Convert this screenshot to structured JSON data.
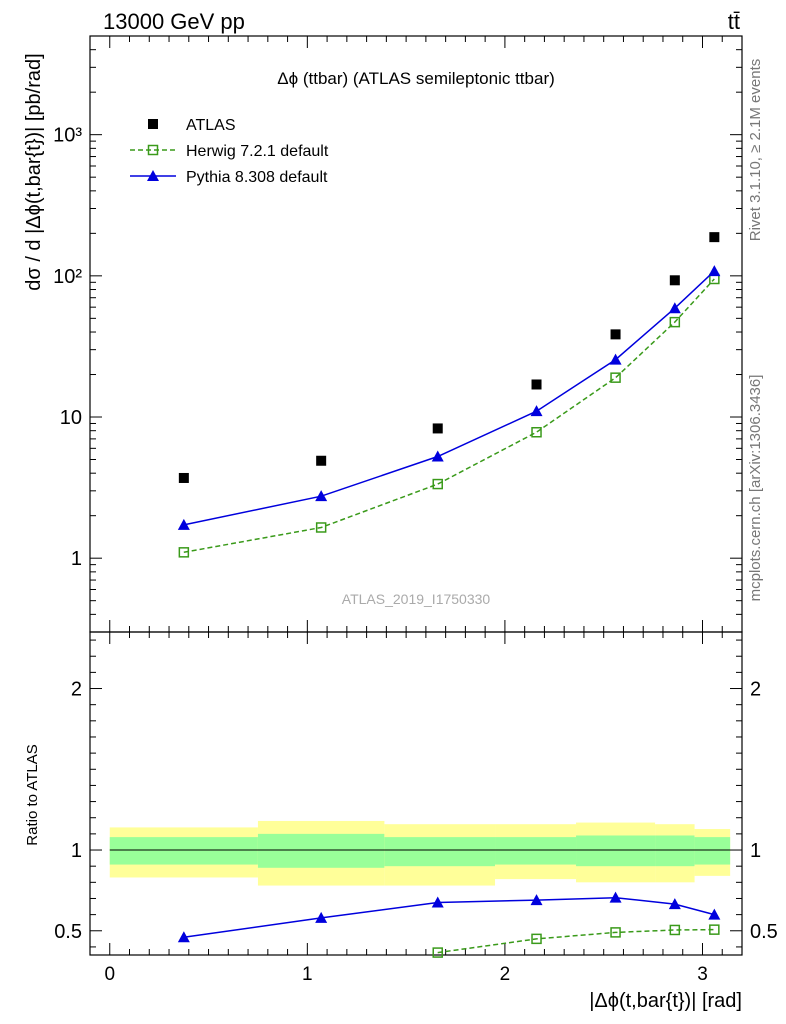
{
  "header": {
    "left": "13000 GeV pp",
    "right": "tt̄"
  },
  "side": {
    "rivet": "Rivet 3.1.10, ≥ 2.1M events",
    "mcplots": "mcplots.cern.ch [arXiv:1306.3436]"
  },
  "chart_data": [
    {
      "type": "scatter",
      "title": "Δϕ (ttbar) (ATLAS semileptonic ttbar)",
      "watermark": "ATLAS_2019_I1750330",
      "xlabel": "|Δϕ(t,bar{t})| [rad]",
      "ylabel": "dσ / d |Δϕ(t,bar{t})| [pb/rad]",
      "yscale": "log",
      "xlim": [
        -0.1,
        3.2
      ],
      "ylim": [
        0.3,
        5000
      ],
      "yticks": [
        {
          "v": 1,
          "label": "1"
        },
        {
          "v": 10,
          "label": "10"
        },
        {
          "v": 100,
          "label": "10²"
        },
        {
          "v": 1000,
          "label": "10³"
        }
      ],
      "xticks": [
        0,
        1,
        2,
        3
      ],
      "legend_position": "top-left",
      "series": [
        {
          "name": "ATLAS",
          "style": "data",
          "color": "#000000",
          "x": [
            0.375,
            1.07,
            1.66,
            2.16,
            2.56,
            2.86,
            3.06
          ],
          "y": [
            3.7,
            4.9,
            8.3,
            17.0,
            38.5,
            93.0,
            188.0
          ]
        },
        {
          "name": "Herwig 7.2.1 default",
          "style": "dashed-open-square",
          "color": "#3a9a1a",
          "x": [
            0.375,
            1.07,
            1.66,
            2.16,
            2.56,
            2.86,
            3.06
          ],
          "y": [
            1.1,
            1.65,
            3.35,
            7.8,
            19.0,
            47.0,
            95.0
          ]
        },
        {
          "name": "Pythia 8.308 default",
          "style": "solid-triangle",
          "color": "#0000dd",
          "x": [
            0.375,
            1.07,
            1.66,
            2.16,
            2.56,
            2.86,
            3.06
          ],
          "y": [
            1.72,
            2.75,
            5.25,
            11.0,
            25.5,
            59.0,
            108.0
          ]
        }
      ]
    },
    {
      "type": "line",
      "ylabel": "Ratio to ATLAS",
      "xlim": [
        -0.1,
        3.2
      ],
      "ylim": [
        0.35,
        2.35
      ],
      "yticks": [
        {
          "v": 0.5,
          "label": "0.5"
        },
        {
          "v": 1,
          "label": "1"
        },
        {
          "v": 2,
          "label": "2"
        }
      ],
      "xticks": [
        0,
        1,
        2,
        3
      ],
      "reference_line": 1,
      "bands": {
        "edges": [
          0,
          0.75,
          1.39,
          1.95,
          2.36,
          2.76,
          2.96,
          3.14
        ],
        "yellow": [
          [
            0.83,
            1.14
          ],
          [
            0.78,
            1.18
          ],
          [
            0.78,
            1.16
          ],
          [
            0.82,
            1.16
          ],
          [
            0.8,
            1.17
          ],
          [
            0.8,
            1.16
          ],
          [
            0.84,
            1.13
          ],
          [
            0.85,
            1.13
          ]
        ],
        "green": [
          [
            0.91,
            1.08
          ],
          [
            0.89,
            1.1
          ],
          [
            0.9,
            1.08
          ],
          [
            0.91,
            1.08
          ],
          [
            0.9,
            1.09
          ],
          [
            0.9,
            1.09
          ],
          [
            0.91,
            1.08
          ],
          [
            0.91,
            1.07
          ]
        ],
        "yellow_color": "#ffff99",
        "green_color": "#99ff99"
      },
      "series": [
        {
          "name": "Herwig 7.2.1 default",
          "style": "dashed-open-square",
          "color": "#3a9a1a",
          "x": [
            1.66,
            2.16,
            2.56,
            2.86,
            3.06
          ],
          "y": [
            0.365,
            0.45,
            0.49,
            0.505,
            0.507
          ]
        },
        {
          "name": "Pythia 8.308 default",
          "style": "solid-triangle",
          "color": "#0000dd",
          "x": [
            0.375,
            1.07,
            1.66,
            2.16,
            2.56,
            2.86,
            3.06
          ],
          "y": [
            0.46,
            0.58,
            0.675,
            0.69,
            0.705,
            0.665,
            0.6
          ]
        }
      ]
    }
  ]
}
